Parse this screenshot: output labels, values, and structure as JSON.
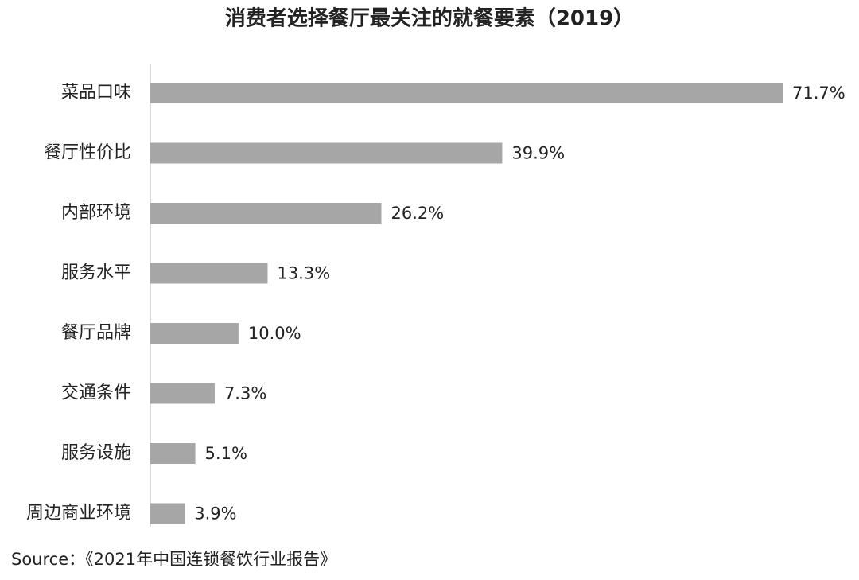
{
  "chart_data": {
    "type": "bar",
    "orientation": "horizontal",
    "title": "消费者选择餐厅最关注的就餐要素（2019）",
    "categories": [
      "菜品口味",
      "餐厅性价比",
      "内部环境",
      "服务水平",
      "餐厅品牌",
      "交通条件",
      "服务设施",
      "周边商业环境"
    ],
    "values": [
      71.7,
      39.9,
      26.2,
      13.3,
      10.0,
      7.3,
      5.1,
      3.9
    ],
    "value_labels": [
      "71.7%",
      "39.9%",
      "26.2%",
      "13.3%",
      "10.0%",
      "7.3%",
      "5.1%",
      "3.9%"
    ],
    "color": "#a6a6a6",
    "source": "Source：《2021年中国连锁餐饮行业报告》"
  }
}
